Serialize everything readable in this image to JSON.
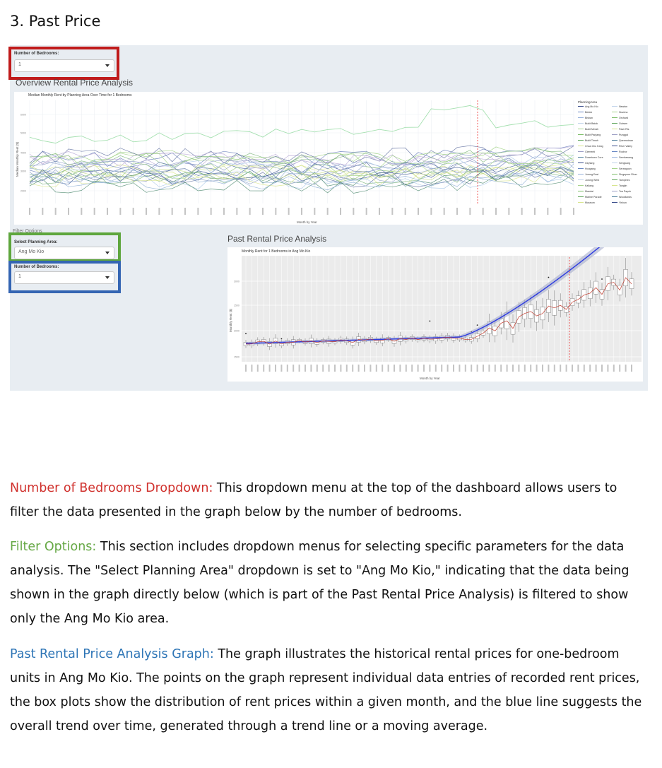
{
  "heading": "3.  Past Price",
  "top_filter": {
    "label": "Number of Bedrooms:",
    "value": "1"
  },
  "overview": {
    "section_title": "Overview Rental Price Analysis",
    "chart_title": "Median Monthly Rent by Planning Area Over Time for 1 Bedrooms",
    "ylabel": "Median Monthly Rent ($)",
    "xlabel": "Month by Year",
    "legend_title": "PlanningArea",
    "legend_left": [
      "Ang Mo Kio",
      "Bedok",
      "Bishan",
      "Bukit Batok",
      "Bukit Merah",
      "Bukit Panjang",
      "Bukit Timah",
      "Choa Chu Kang",
      "Clementi",
      "Downtown Core",
      "Geylang",
      "Hougang",
      "Jurong East",
      "Jurong West",
      "Kallang",
      "Mandai",
      "Marine Parade",
      "Museum"
    ],
    "legend_right": [
      "Newton",
      "Novena",
      "Orchard",
      "Outram",
      "Pasir Ris",
      "Punggol",
      "Queenstown",
      "River Valley",
      "Rochor",
      "Sembawang",
      "Sengkang",
      "Serangoon",
      "Singapore River",
      "Tampines",
      "Tanglin",
      "Toa Payoh",
      "Woodlands",
      "Yishun"
    ],
    "yticks": [
      "6000",
      "5000",
      "4000",
      "3000",
      "2000"
    ]
  },
  "filter_options": {
    "header": "Filter Options",
    "area_label": "Select Planning Area:",
    "area_value": "Ang Mo Kio",
    "bedrooms_label": "Number of Bedrooms:",
    "bedrooms_value": "1"
  },
  "past": {
    "section_title": "Past Rental Price Analysis",
    "chart_title": "Monthly Rent for 1 Bedrooms in Ang Mo Kio",
    "ylabel": "Monthly Rent ($)",
    "xlabel": "Month by Year",
    "yticks": [
      "3000",
      "2500",
      "2000",
      "1500"
    ]
  },
  "colors": {
    "red": "#d0312d",
    "green": "#66a845",
    "blue": "#2e75b6"
  },
  "paragraphs": {
    "p1_key": "Number of Bedrooms Dropdown:",
    "p1_text": " This dropdown menu at the top of the dashboard allows users to filter the data presented in the graph below by the number of bedrooms.",
    "p2_key": "Filter Options:",
    "p2_text": " This section includes dropdown menus for selecting specific parameters for the data analysis.   The \"Select Planning Area\" dropdown is set to \"Ang Mo Kio,\" indicating that the data being shown in the graph directly below (which is part of the Past Rental Price Analysis) is filtered to show only the Ang Mo Kio area.",
    "p3_key": "Past Rental Price Analysis Graph:",
    "p3_text": " The graph illustrates the historical rental prices for one-bedroom units in Ang Mo Kio.   The points on the graph represent individual data entries of recorded rent prices, the box plots show the distribution of rent prices within a given month, and the blue line suggests the overall trend over time, generated through a trend line or a moving average."
  }
}
